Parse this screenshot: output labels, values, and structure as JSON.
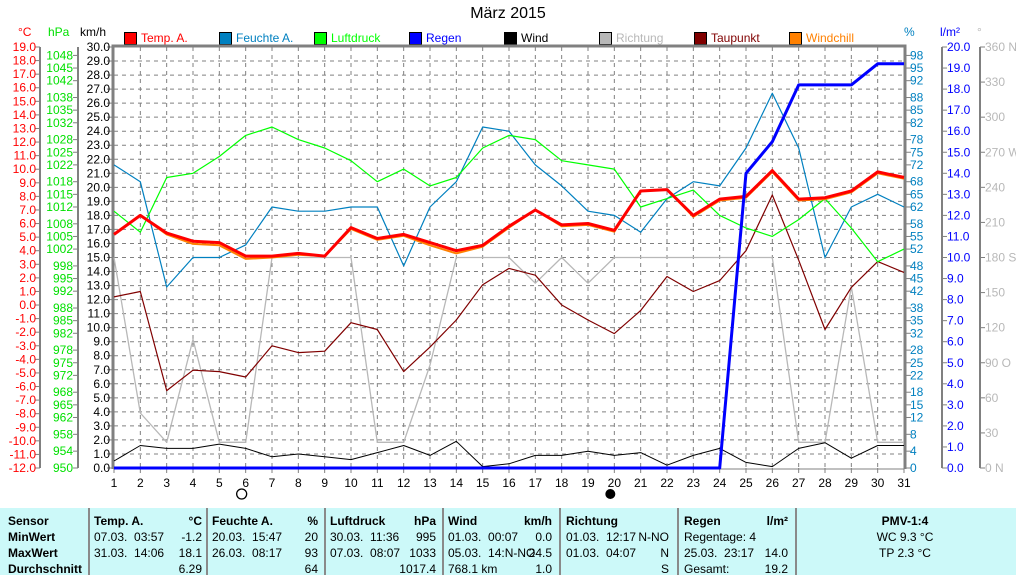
{
  "chart_data": {
    "type": "line",
    "title": "März 2015",
    "x": [
      1,
      2,
      3,
      4,
      5,
      6,
      7,
      8,
      9,
      10,
      11,
      12,
      13,
      14,
      15,
      16,
      17,
      18,
      19,
      20,
      21,
      22,
      23,
      24,
      25,
      26,
      27,
      28,
      29,
      30,
      31
    ],
    "axes": {
      "temp": {
        "unit": "°C",
        "range": [
          -12,
          19
        ],
        "color": "#ff0000",
        "ticks": [
          -12,
          -11,
          -10,
          -9,
          -8,
          -7,
          -6,
          -5,
          -4,
          -3,
          -2,
          -1,
          0,
          1,
          2,
          3,
          4,
          5,
          6,
          7,
          8,
          9,
          10,
          11,
          12,
          13,
          14,
          15,
          16,
          17,
          18,
          19
        ],
        "decimals": 1
      },
      "pressure": {
        "unit": "hPa",
        "range": [
          950,
          1050
        ],
        "color": "#00e000",
        "ticks": [
          950,
          954,
          958,
          962,
          965,
          968,
          972,
          975,
          978,
          982,
          985,
          988,
          992,
          995,
          998,
          1002,
          1005,
          1008,
          1012,
          1015,
          1018,
          1022,
          1025,
          1028,
          1032,
          1035,
          1038,
          1042,
          1045,
          1048
        ],
        "decimals": 0
      },
      "wind": {
        "unit": "km/h",
        "range": [
          0,
          30
        ],
        "color": "#000000",
        "ticks": [
          0,
          1,
          2,
          3,
          4,
          5,
          6,
          7,
          8,
          9,
          10,
          11,
          12,
          13,
          14,
          15,
          16,
          17,
          18,
          19,
          20,
          21,
          22,
          23,
          24,
          25,
          26,
          27,
          28,
          29,
          30
        ],
        "decimals": 1
      },
      "humidity": {
        "unit": "%",
        "range": [
          0,
          100
        ],
        "color": "#0080c0",
        "ticks": [
          0,
          4,
          8,
          12,
          15,
          18,
          22,
          25,
          28,
          32,
          35,
          38,
          42,
          45,
          48,
          52,
          55,
          58,
          62,
          65,
          68,
          72,
          75,
          78,
          82,
          85,
          88,
          92,
          95,
          98
        ],
        "decimals": 0
      },
      "rain": {
        "unit": "l/m²",
        "range": [
          0,
          20
        ],
        "color": "#0000ff",
        "ticks": [
          0,
          1,
          2,
          3,
          4,
          5,
          6,
          7,
          8,
          9,
          10,
          11,
          12,
          13,
          14,
          15,
          16,
          17,
          18,
          19,
          20
        ],
        "decimals": 1
      },
      "direction": {
        "unit": "°",
        "range": [
          0,
          360
        ],
        "color": "#b8b8b8",
        "ticks": [
          0,
          30,
          60,
          90,
          120,
          150,
          180,
          210,
          240,
          270,
          300,
          330,
          360
        ],
        "tick_labels": [
          "0   N",
          "30",
          "60",
          "90  O",
          "120",
          "150",
          "180 S",
          "210",
          "240",
          "270 W",
          "300",
          "330",
          "360 N"
        ]
      }
    },
    "series": [
      {
        "name": "Richtung",
        "axis": "direction",
        "color": "#b8b8b8",
        "width": 1.3,
        "values": [
          180,
          47,
          22,
          110,
          22,
          22,
          180,
          180,
          180,
          180,
          22,
          22,
          88,
          180,
          180,
          180,
          158,
          180,
          158,
          180,
          180,
          180,
          180,
          180,
          180,
          180,
          22,
          22,
          155,
          22,
          22
        ]
      },
      {
        "name": "Wind",
        "axis": "wind",
        "color": "#000000",
        "width": 1,
        "values": [
          0.5,
          1.6,
          1.4,
          1.4,
          1.7,
          1.4,
          0.8,
          1.0,
          0.8,
          0.6,
          1.1,
          1.6,
          0.9,
          1.9,
          0.1,
          0.3,
          0.9,
          0.9,
          1.2,
          0.9,
          1.1,
          0.2,
          0.9,
          1.4,
          0.4,
          0.1,
          1.4,
          1.8,
          0.7,
          1.6,
          1.6
        ]
      },
      {
        "name": "Taupunkt",
        "axis": "temp",
        "color": "#800000",
        "width": 1.2,
        "values": [
          0.6,
          1.0,
          -6.3,
          -4.8,
          -4.9,
          -5.3,
          -3.0,
          -3.5,
          -3.4,
          -1.3,
          -1.8,
          -4.9,
          -3.1,
          -1.1,
          1.5,
          2.7,
          2.2,
          0.0,
          -1.1,
          -2.1,
          -0.4,
          2.1,
          1.0,
          1.8,
          4.0,
          8.1,
          3.3,
          -1.8,
          1.3,
          3.2,
          2.4
        ]
      },
      {
        "name": "Feuchte A.",
        "axis": "humidity",
        "color": "#0080c0",
        "width": 1.2,
        "values": [
          72,
          68,
          43,
          50,
          50,
          53,
          62,
          61,
          61,
          62,
          62,
          48,
          62,
          68,
          81,
          80,
          72,
          67,
          61,
          60,
          56,
          64,
          68,
          67,
          76,
          89,
          76,
          50,
          62,
          65,
          62
        ]
      },
      {
        "name": "Luftdruck",
        "axis": "pressure",
        "color": "#00ff00",
        "width": 1.2,
        "values": [
          1011,
          1006,
          1019,
          1020,
          1024,
          1029,
          1031,
          1028,
          1026,
          1023,
          1018,
          1021,
          1017,
          1019,
          1026,
          1029,
          1028,
          1023,
          1022,
          1021,
          1012,
          1014,
          1016,
          1010,
          1007,
          1005,
          1009,
          1014,
          1007,
          999,
          1002
        ]
      },
      {
        "name": "Windchill",
        "axis": "temp",
        "color": "#ff8000",
        "width": 2,
        "values": [
          5.2,
          6.6,
          5.2,
          4.5,
          4.4,
          3.4,
          3.5,
          3.7,
          3.6,
          5.6,
          4.8,
          5.1,
          4.4,
          3.8,
          4.3,
          5.7,
          7.0,
          5.8,
          5.9,
          5.4,
          8.4,
          8.5,
          6.5,
          7.7,
          7.9,
          9.8,
          7.7,
          7.8,
          8.3,
          9.7,
          9.3
        ]
      },
      {
        "name": "Temp. A.",
        "axis": "temp",
        "color": "#ff0000",
        "width": 3,
        "values": [
          5.2,
          6.6,
          5.3,
          4.7,
          4.6,
          3.6,
          3.6,
          3.8,
          3.6,
          5.7,
          4.9,
          5.2,
          4.6,
          4.0,
          4.4,
          5.8,
          7.0,
          5.9,
          6.0,
          5.5,
          8.4,
          8.5,
          6.6,
          7.8,
          8.0,
          9.9,
          7.8,
          7.9,
          8.4,
          9.8,
          9.4
        ]
      },
      {
        "name": "Regen",
        "axis": "rain",
        "color": "#0000ff",
        "width": 3,
        "values": [
          0,
          0,
          0,
          0,
          0,
          0,
          0,
          0,
          0,
          0,
          0,
          0,
          0,
          0,
          0,
          0,
          0,
          0,
          0,
          0,
          0,
          0,
          0,
          0,
          14.0,
          15.5,
          18.2,
          18.2,
          18.2,
          19.2,
          19.2
        ]
      }
    ],
    "legend": [
      {
        "label": "Temp. A.",
        "color": "#ff0000"
      },
      {
        "label": "Feuchte A.",
        "color": "#0080c0"
      },
      {
        "label": "Luftdruck",
        "color": "#00ff00"
      },
      {
        "label": "Regen",
        "color": "#0000ff"
      },
      {
        "label": "Wind",
        "color": "#000000"
      },
      {
        "label": "Richtung",
        "color": "#b8b8b8"
      },
      {
        "label": "Taupunkt",
        "color": "#800000"
      },
      {
        "label": "Windchill",
        "color": "#ff8000"
      }
    ],
    "moon_phases": [
      {
        "day": 6,
        "phase": "full-moon"
      },
      {
        "day": 20,
        "phase": "new-moon"
      }
    ]
  },
  "table": {
    "sensor": {
      "header": "Sensor",
      "rows": [
        "MinWert",
        "MaxWert",
        "Durchschnitt"
      ]
    },
    "sections": [
      {
        "header": "Temp. A.",
        "unit": "°C",
        "rows": [
          [
            "07.03.  03:57",
            "-1.2"
          ],
          [
            "31.03.  14:06",
            "18.1"
          ],
          [
            "",
            "6.29"
          ]
        ]
      },
      {
        "header": "Feuchte A.",
        "unit": "%",
        "rows": [
          [
            "20.03.  15:47",
            "20"
          ],
          [
            "26.03.  08:17",
            "93"
          ],
          [
            "",
            "64"
          ]
        ]
      },
      {
        "header": "Luftdruck",
        "unit": "hPa",
        "rows": [
          [
            "30.03.  11:36",
            "995"
          ],
          [
            "07.03.  08:07",
            "1033"
          ],
          [
            "",
            "1017.4"
          ]
        ]
      },
      {
        "header": "Wind",
        "unit": "km/h",
        "rows": [
          [
            "01.03.  00:07",
            "0.0"
          ],
          [
            "05.03.  14:N-NO",
            "24.5"
          ],
          [
            "768.1 km",
            "1.0"
          ]
        ]
      },
      {
        "header": "Richtung",
        "unit": "",
        "rows": [
          [
            "01.03.  12:17",
            "N-NO"
          ],
          [
            "01.03.  04:07",
            "N"
          ],
          [
            "",
            "S"
          ]
        ]
      },
      {
        "header": "Regen",
        "unit": "l/m²",
        "rows": [
          [
            "Regentage: 4",
            ""
          ],
          [
            "25.03.  23:17",
            "14.0"
          ],
          [
            "Gesamt:",
            "19.2"
          ]
        ]
      }
    ],
    "pmv": {
      "header": "PMV-1:4",
      "rows": [
        "WC 9.3 °C",
        "TP 2.3 °C"
      ]
    }
  }
}
